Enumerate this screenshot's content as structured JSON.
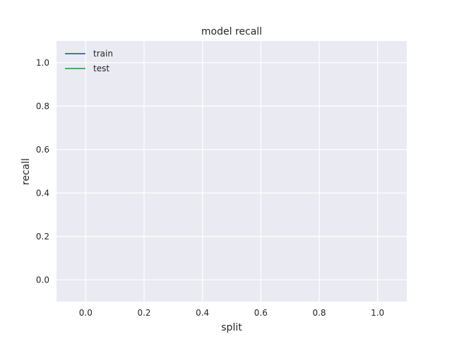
{
  "chart_data": {
    "type": "line",
    "title": "model recall",
    "xlabel": "split",
    "ylabel": "recall",
    "xlim": [
      -0.1,
      1.1
    ],
    "ylim": [
      -0.1,
      1.1
    ],
    "xticks": [
      "0.0",
      "0.2",
      "0.4",
      "0.6",
      "0.8",
      "1.0"
    ],
    "yticks": [
      "0.0",
      "0.2",
      "0.4",
      "0.6",
      "0.8",
      "1.0"
    ],
    "grid": true,
    "legend_position": "top-left",
    "series": [
      {
        "name": "train",
        "color": "#4c72b0",
        "x": [],
        "y": []
      },
      {
        "name": "test",
        "color": "#55a868",
        "x": [],
        "y": []
      }
    ]
  },
  "style": {
    "plot_background": "#eaeaf2",
    "grid_color": "#ffffff"
  }
}
